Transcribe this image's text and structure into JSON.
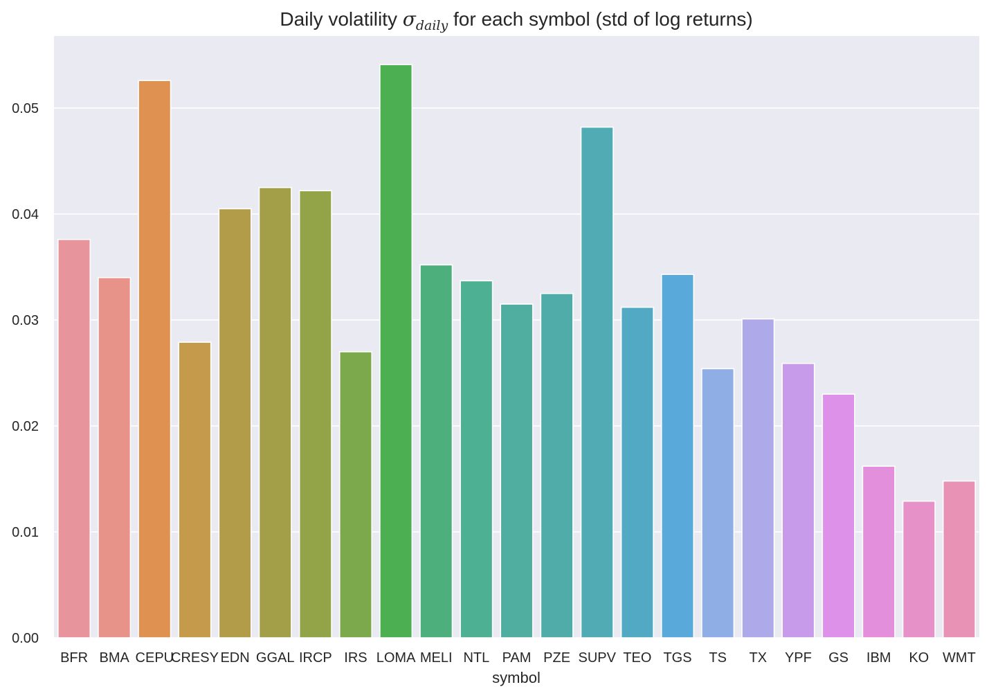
{
  "chart_data": {
    "type": "bar",
    "title": {
      "prefix": "Daily volatility ",
      "symbol": "σ",
      "subscript": "daily",
      "suffix": " for each symbol (std of log returns)"
    },
    "xlabel": "symbol",
    "ylabel": "",
    "ylim": [
      0,
      0.0568
    ],
    "yticks": [
      "0.00",
      "0.01",
      "0.02",
      "0.03",
      "0.04",
      "0.05"
    ],
    "ytick_values": [
      0,
      0.01,
      0.02,
      0.03,
      0.04,
      0.05
    ],
    "grid": true,
    "legend": "none",
    "categories": [
      "BFR",
      "BMA",
      "CEPU",
      "CRESY",
      "EDN",
      "GGAL",
      "IRCP",
      "IRS",
      "LOMA",
      "MELI",
      "NTL",
      "PAM",
      "PZE",
      "SUPV",
      "TEO",
      "TGS",
      "TS",
      "TX",
      "YPF",
      "GS",
      "IBM",
      "KO",
      "WMT"
    ],
    "values": [
      0.0376,
      0.034,
      0.0526,
      0.0279,
      0.0405,
      0.0425,
      0.0422,
      0.027,
      0.0541,
      0.0352,
      0.0337,
      0.0315,
      0.0325,
      0.0482,
      0.0312,
      0.0343,
      0.0254,
      0.0301,
      0.0259,
      0.023,
      0.0162,
      0.0129,
      0.0148
    ],
    "colors": [
      "#e8949d",
      "#e8938a",
      "#de9150",
      "#c69a4b",
      "#b39c49",
      "#a29f48",
      "#93a347",
      "#7ba94b",
      "#4caf51",
      "#4db07c",
      "#4eb093",
      "#4fae9f",
      "#4faca8",
      "#51abb5",
      "#52a9c3",
      "#59a9db",
      "#8eaee5",
      "#aeaaea",
      "#c79bea",
      "#dd91e8",
      "#e48fdb",
      "#e791c9",
      "#e893b5"
    ],
    "background": "#eaeaf2",
    "gridcolor": "#ffffff"
  }
}
